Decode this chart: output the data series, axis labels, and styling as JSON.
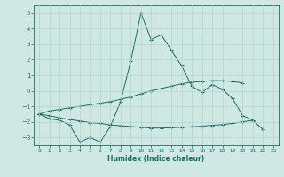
{
  "x": [
    0,
    1,
    2,
    3,
    4,
    5,
    6,
    7,
    8,
    9,
    10,
    11,
    12,
    13,
    14,
    15,
    16,
    17,
    18,
    19,
    20,
    21,
    22,
    23
  ],
  "line_main": [
    -1.5,
    -1.8,
    -1.9,
    -2.2,
    -3.3,
    -3.0,
    -3.3,
    -2.3,
    -0.7,
    1.9,
    5.0,
    3.3,
    3.6,
    2.6,
    1.6,
    0.3,
    -0.1,
    0.4,
    0.1,
    -0.5,
    -1.6,
    -1.9,
    null,
    null
  ],
  "line_upper": [
    -1.5,
    -1.3,
    -1.2,
    -1.1,
    -1.0,
    -0.9,
    -0.8,
    -0.7,
    -0.55,
    -0.4,
    -0.2,
    0.0,
    0.15,
    0.3,
    0.45,
    0.55,
    0.6,
    0.65,
    0.65,
    0.6,
    0.5,
    null,
    null,
    null
  ],
  "line_lower": [
    -1.5,
    -1.6,
    -1.75,
    -1.85,
    -1.95,
    -2.05,
    -2.1,
    -2.2,
    -2.25,
    -2.3,
    -2.35,
    -2.4,
    -2.4,
    -2.38,
    -2.35,
    -2.32,
    -2.28,
    -2.22,
    -2.18,
    -2.1,
    -2.0,
    -1.9,
    -2.5,
    null
  ],
  "bg_color": "#cfe8e3",
  "grid_color": "#b5d5cf",
  "line_color": "#1a6b62",
  "xlabel": "Humidex (Indice chaleur)",
  "ylim": [
    -3.5,
    5.5
  ],
  "xlim": [
    -0.5,
    23.5
  ],
  "yticks": [
    -3,
    -2,
    -1,
    0,
    1,
    2,
    3,
    4,
    5
  ],
  "xticks": [
    0,
    1,
    2,
    3,
    4,
    5,
    6,
    7,
    8,
    9,
    10,
    11,
    12,
    13,
    14,
    15,
    16,
    17,
    18,
    19,
    20,
    21,
    22,
    23
  ]
}
